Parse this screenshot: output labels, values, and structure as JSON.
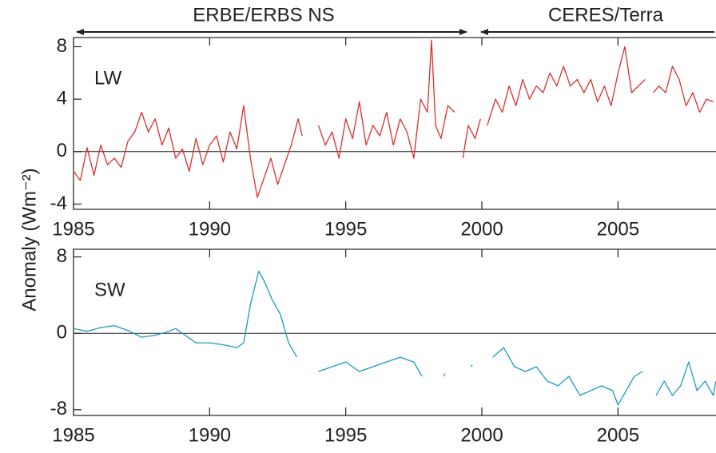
{
  "chart_data": [
    {
      "type": "line",
      "panel_label": "LW",
      "ylabel": "Anomaly (Wm⁻²)",
      "annotations": [
        "ERBE/ERBS NS",
        "CERES/Terra"
      ],
      "xlim": [
        1985,
        2008.6
      ],
      "xticks": [
        1985,
        1990,
        1995,
        2000,
        2005
      ],
      "ylim": [
        -4.4,
        8.7
      ],
      "yticks": [
        -4,
        0,
        4,
        8
      ],
      "x": [
        1985.0,
        1985.25,
        1985.5,
        1985.75,
        1986.0,
        1986.25,
        1986.5,
        1986.75,
        1987.0,
        1987.25,
        1987.5,
        1987.75,
        1988.0,
        1988.25,
        1988.5,
        1988.75,
        1989.0,
        1989.25,
        1989.5,
        1989.75,
        1990.0,
        1990.25,
        1990.5,
        1990.75,
        1991.0,
        1991.25,
        1991.5,
        1991.75,
        1992.0,
        1992.25,
        1992.5,
        1992.75,
        1993.0,
        1993.25,
        1993.4,
        1993.7,
        1994.0,
        1994.25,
        1994.5,
        1994.75,
        1995.0,
        1995.25,
        1995.5,
        1995.75,
        1996.0,
        1996.25,
        1996.5,
        1996.75,
        1997.0,
        1997.25,
        1997.5,
        1997.75,
        1998.0,
        1998.15,
        1998.3,
        1998.5,
        1998.75,
        1999.0,
        1999.15,
        1999.3,
        1999.5,
        1999.75,
        1999.95,
        2000.1,
        2000.2,
        2000.5,
        2000.75,
        2001.0,
        2001.25,
        2001.5,
        2001.75,
        2002.0,
        2002.25,
        2002.5,
        2002.75,
        2003.0,
        2003.25,
        2003.5,
        2003.75,
        2004.0,
        2004.25,
        2004.5,
        2004.75,
        2005.0,
        2005.25,
        2005.5,
        2005.75,
        2006.0,
        2006.15,
        2006.3,
        2006.5,
        2006.75,
        2007.0,
        2007.25,
        2007.5,
        2007.75,
        2008.0,
        2008.25,
        2008.5
      ],
      "series": [
        {
          "color": "#d9302c",
          "values": [
            -1.5,
            -2.2,
            0.3,
            -1.8,
            0.5,
            -1.0,
            -0.5,
            -1.2,
            0.8,
            1.5,
            3.0,
            1.5,
            2.5,
            0.5,
            1.8,
            -0.5,
            0.2,
            -1.5,
            1.0,
            -1.0,
            0.5,
            1.2,
            -0.8,
            1.5,
            0.2,
            3.5,
            -0.5,
            -3.5,
            -2.0,
            -0.5,
            -2.5,
            -1.0,
            0.5,
            2.5,
            1.2,
            null,
            2.0,
            0.5,
            1.5,
            -0.5,
            2.5,
            1.0,
            3.8,
            0.5,
            2.0,
            1.2,
            3.0,
            0.5,
            2.5,
            1.5,
            -0.5,
            4.0,
            3.0,
            8.5,
            2.0,
            1.0,
            3.5,
            3.0,
            null,
            -0.5,
            2.0,
            1.0,
            2.5,
            null,
            2.0,
            4.0,
            3.0,
            5.0,
            3.5,
            5.5,
            4.0,
            5.0,
            4.5,
            6.0,
            5.0,
            6.5,
            5.0,
            5.5,
            4.5,
            5.5,
            3.8,
            5.0,
            3.5,
            6.0,
            8.0,
            4.5,
            5.0,
            5.5,
            null,
            4.5,
            5.0,
            4.5,
            6.5,
            5.5,
            3.5,
            4.5,
            3.0,
            4.0,
            3.8
          ]
        }
      ]
    },
    {
      "type": "line",
      "panel_label": "SW",
      "xlim": [
        1985,
        2008.6
      ],
      "xticks": [
        1985,
        1990,
        1995,
        2000,
        2005
      ],
      "ylim": [
        -8.6,
        8.8
      ],
      "yticks": [
        -8,
        0,
        8
      ],
      "x": [
        1985.0,
        1985.5,
        1986.0,
        1986.5,
        1987.0,
        1987.5,
        1988.0,
        1988.5,
        1988.75,
        1989.0,
        1989.5,
        1990.0,
        1990.5,
        1991.0,
        1991.25,
        1991.5,
        1991.8,
        1992.0,
        1992.3,
        1992.6,
        1992.9,
        1993.2,
        1993.6,
        1994.0,
        1994.5,
        1995.0,
        1995.5,
        1996.0,
        1996.5,
        1997.0,
        1997.5,
        1997.8,
        1998.0,
        1998.6,
        1998.65,
        1998.8,
        1999.6,
        1999.65,
        2000.0,
        2000.4,
        2000.8,
        2001.2,
        2001.6,
        2002.0,
        2002.4,
        2002.8,
        2003.2,
        2003.6,
        2004.0,
        2004.4,
        2004.8,
        2005.0,
        2005.3,
        2005.6,
        2005.9,
        2006.2,
        2006.4,
        2006.7,
        2007.0,
        2007.3,
        2007.6,
        2007.9,
        2008.2,
        2008.5,
        2008.6
      ],
      "series": [
        {
          "color": "#1a9bbf",
          "values": [
            0.5,
            0.2,
            0.6,
            0.8,
            0.3,
            -0.4,
            -0.2,
            0.2,
            0.5,
            0,
            -1.0,
            -1.0,
            -1.2,
            -1.5,
            -1.0,
            3.0,
            6.5,
            5.5,
            3.5,
            2.0,
            -1.0,
            -2.5,
            null,
            -4.0,
            -3.5,
            -3.0,
            -4.0,
            -3.5,
            -3.0,
            -2.5,
            -3.0,
            -4.5,
            null,
            -4.5,
            -4.2,
            null,
            -3.5,
            -3.3,
            null,
            -2.5,
            -1.5,
            -3.5,
            -4.0,
            -3.5,
            -5.0,
            -5.5,
            -4.5,
            -6.5,
            -6.0,
            -5.5,
            -6.0,
            -7.5,
            -6.0,
            -4.5,
            -4.0,
            null,
            -6.5,
            -5.0,
            -6.5,
            -5.5,
            -3.0,
            -6.0,
            -5.0,
            -6.5,
            -5.0
          ]
        }
      ]
    }
  ]
}
